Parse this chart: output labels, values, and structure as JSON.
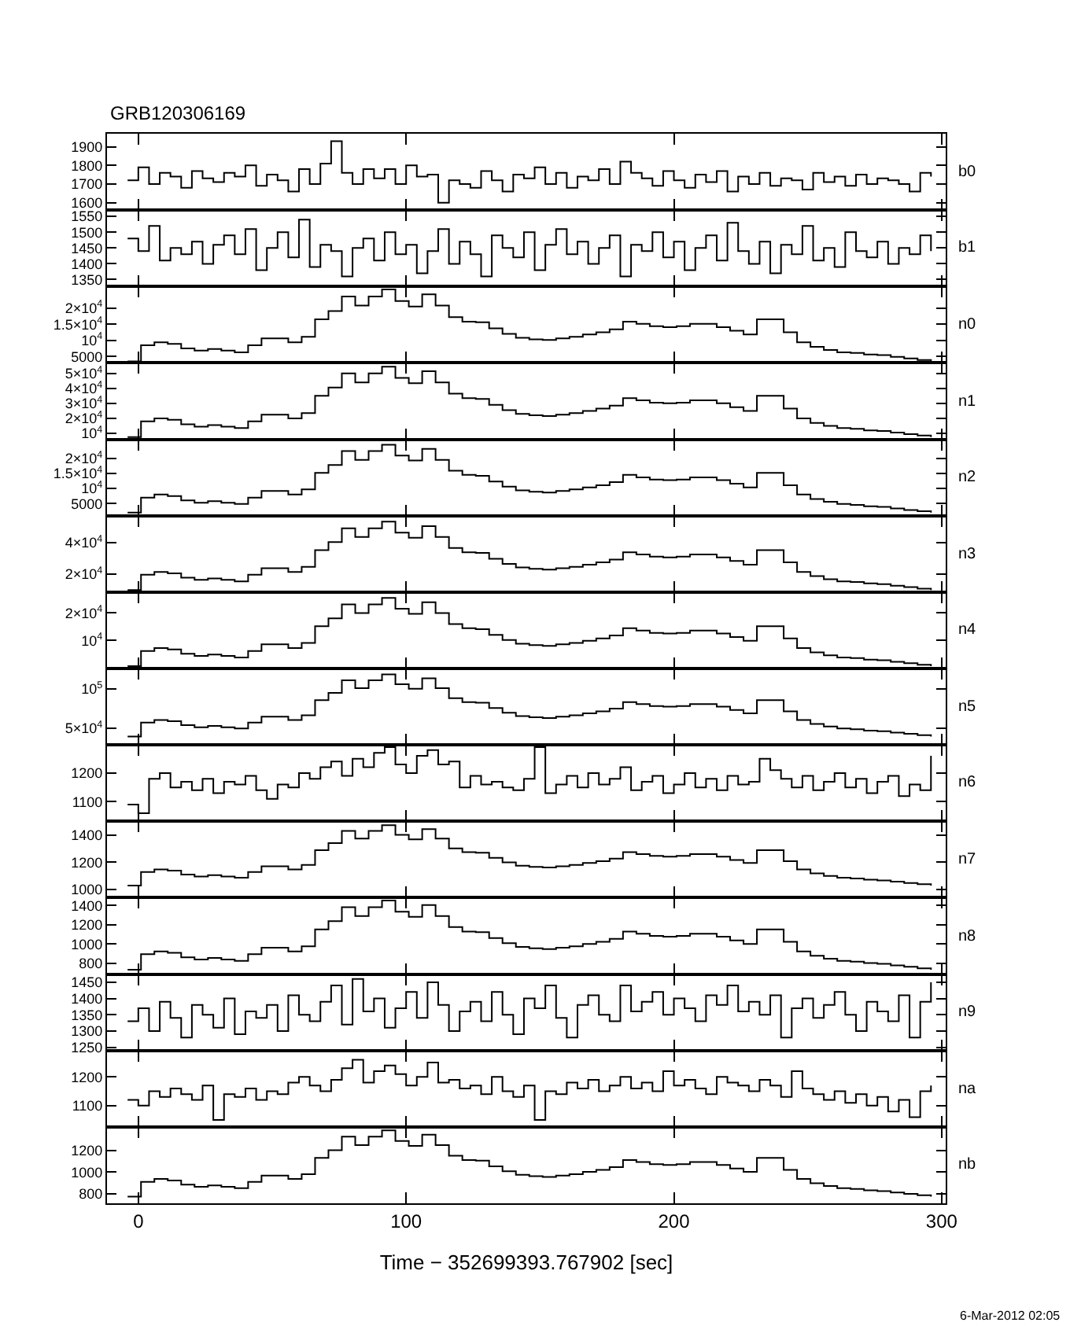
{
  "chart_data": [
    {
      "type": "step",
      "title": "GRB120306169",
      "x": [
        -4,
        0,
        4,
        8,
        12,
        16,
        20,
        24,
        28,
        32,
        36,
        40,
        44,
        48,
        52,
        56,
        60,
        64,
        68,
        72,
        76,
        80,
        84,
        88,
        92,
        96,
        100,
        104,
        108,
        112,
        116,
        120,
        124,
        128,
        132,
        136,
        140,
        144,
        148,
        152,
        156,
        160,
        164,
        168,
        172,
        176,
        180,
        184,
        188,
        192,
        196,
        200,
        204,
        208,
        212,
        216,
        220,
        224,
        228,
        232,
        236,
        240,
        244,
        248,
        252,
        256,
        260,
        264,
        268,
        272,
        276,
        280,
        284,
        288,
        292,
        296
      ],
      "xlim": [
        -11.7,
        301.5
      ],
      "xticks": [
        0,
        100,
        200,
        300
      ],
      "ylim": [
        1560,
        1970
      ],
      "yticks": [
        1600,
        1700,
        1800,
        1900
      ],
      "tick_labels": "y",
      "series": [
        {
          "name": "b0",
          "color": "#000000",
          "values": [
            1720,
            1790,
            1700,
            1760,
            1740,
            1680,
            1770,
            1730,
            1710,
            1760,
            1740,
            1800,
            1690,
            1750,
            1720,
            1660,
            1780,
            1700,
            1810,
            1930,
            1760,
            1700,
            1780,
            1730,
            1780,
            1700,
            1800,
            1740,
            1750,
            1600,
            1720,
            1700,
            1680,
            1770,
            1720,
            1660,
            1750,
            1730,
            1790,
            1700,
            1760,
            1680,
            1740,
            1720,
            1780,
            1700,
            1820,
            1760,
            1730,
            1690,
            1770,
            1720,
            1680,
            1750,
            1710,
            1770,
            1660,
            1740,
            1700,
            1760,
            1690,
            1730,
            1720,
            1670,
            1760,
            1710,
            1740,
            1690,
            1750,
            1700,
            1730,
            1720,
            1700,
            1660,
            1760,
            1740
          ]
        }
      ]
    },
    {
      "type": "step",
      "x": [
        -4,
        0,
        4,
        8,
        12,
        16,
        20,
        24,
        28,
        32,
        36,
        40,
        44,
        48,
        52,
        56,
        60,
        64,
        68,
        72,
        76,
        80,
        84,
        88,
        92,
        96,
        100,
        104,
        108,
        112,
        116,
        120,
        124,
        128,
        132,
        136,
        140,
        144,
        148,
        152,
        156,
        160,
        164,
        168,
        172,
        176,
        180,
        184,
        188,
        192,
        196,
        200,
        204,
        208,
        212,
        216,
        220,
        224,
        228,
        232,
        236,
        240,
        244,
        248,
        252,
        256,
        260,
        264,
        268,
        272,
        276,
        280,
        284,
        288,
        292,
        296
      ],
      "xlim": [
        -11.7,
        301.5
      ],
      "xticks": [
        0,
        100,
        200,
        300
      ],
      "ylim": [
        1328,
        1570
      ],
      "yticks": [
        1350,
        1400,
        1450,
        1500,
        1550
      ],
      "tick_labels": "y",
      "series": [
        {
          "name": "b1",
          "color": "#000000",
          "values": [
            1480,
            1440,
            1520,
            1410,
            1450,
            1430,
            1470,
            1400,
            1460,
            1490,
            1430,
            1510,
            1380,
            1450,
            1500,
            1420,
            1540,
            1390,
            1460,
            1440,
            1360,
            1450,
            1480,
            1410,
            1500,
            1430,
            1460,
            1370,
            1440,
            1510,
            1400,
            1470,
            1430,
            1360,
            1490,
            1450,
            1420,
            1500,
            1380,
            1460,
            1510,
            1430,
            1470,
            1400,
            1450,
            1490,
            1360,
            1460,
            1440,
            1500,
            1420,
            1470,
            1380,
            1450,
            1490,
            1410,
            1530,
            1440,
            1400,
            1470,
            1370,
            1460,
            1430,
            1520,
            1410,
            1450,
            1390,
            1500,
            1440,
            1420,
            1470,
            1400,
            1450,
            1430,
            1490,
            1440
          ]
        }
      ]
    },
    {
      "type": "step",
      "x": [
        -4,
        1,
        6,
        11,
        16,
        21,
        26,
        31,
        36,
        41,
        46,
        51,
        56,
        61,
        66,
        71,
        76,
        81,
        86,
        91,
        96,
        101,
        106,
        111,
        116,
        121,
        126,
        131,
        136,
        141,
        146,
        151,
        156,
        161,
        166,
        171,
        176,
        181,
        186,
        191,
        196,
        201,
        206,
        211,
        216,
        221,
        226,
        231,
        236,
        241,
        246,
        251,
        256,
        261,
        266,
        271,
        276,
        281,
        286,
        291,
        296
      ],
      "xlim": [
        -11.7,
        301.5
      ],
      "xticks": [
        0,
        100,
        200,
        300
      ],
      "ylim": [
        3000,
        26700
      ],
      "yticks": [
        5000,
        {
          "value": 10000,
          "label": "10$^{4}$"
        },
        {
          "value": 15000,
          "label": "1.5×10$^{4}$"
        },
        {
          "value": 20000,
          "label": "2×10$^{4}$"
        }
      ],
      "tick_labels": "y",
      "series": [
        {
          "name": "n0",
          "color": "#000000",
          "values": [
            3500,
            8500,
            9400,
            8900,
            7500,
            6800,
            7300,
            6800,
            6300,
            8500,
            10600,
            10600,
            9400,
            11100,
            16500,
            19100,
            23600,
            20800,
            23600,
            25800,
            22200,
            20500,
            24300,
            20800,
            17200,
            15800,
            15600,
            13700,
            12000,
            10800,
            10300,
            10100,
            10600,
            11100,
            11800,
            12500,
            13400,
            15800,
            15100,
            14400,
            14100,
            14400,
            15100,
            15100,
            14100,
            13000,
            11800,
            16500,
            16500,
            12500,
            9400,
            8000,
            7000,
            6300,
            6100,
            5600,
            5400,
            4900,
            4400,
            3900,
            3500
          ]
        }
      ]
    },
    {
      "type": "step",
      "x": [
        -4,
        1,
        6,
        11,
        16,
        21,
        26,
        31,
        36,
        41,
        46,
        51,
        56,
        61,
        66,
        71,
        76,
        81,
        86,
        91,
        96,
        101,
        106,
        111,
        116,
        121,
        126,
        131,
        136,
        141,
        146,
        151,
        156,
        161,
        166,
        171,
        176,
        181,
        186,
        191,
        196,
        201,
        206,
        211,
        216,
        221,
        226,
        231,
        236,
        241,
        246,
        251,
        256,
        261,
        266,
        271,
        276,
        281,
        286,
        291,
        296
      ],
      "xlim": [
        -11.7,
        301.5
      ],
      "xticks": [
        0,
        100,
        200,
        300
      ],
      "ylim": [
        6000,
        57000
      ],
      "yticks": [
        {
          "value": 10000,
          "label": "10$^{4}$"
        },
        {
          "value": 20000,
          "label": "2×10$^{4}$"
        },
        {
          "value": 30000,
          "label": "3×10$^{4}$"
        },
        {
          "value": 40000,
          "label": "4×10$^{4}$"
        },
        {
          "value": 50000,
          "label": "5×10$^{4}$"
        }
      ],
      "tick_labels": "y",
      "series": [
        {
          "name": "n1",
          "color": "#000000",
          "values": [
            7500,
            18000,
            20000,
            19000,
            16000,
            14500,
            15500,
            14500,
            13500,
            18000,
            22500,
            22500,
            20000,
            23500,
            35000,
            40500,
            50000,
            44000,
            50000,
            54500,
            47000,
            43500,
            51500,
            44000,
            36500,
            33500,
            33000,
            29000,
            25500,
            23000,
            22000,
            21500,
            22500,
            23500,
            25000,
            26500,
            28500,
            33500,
            32000,
            30500,
            30000,
            30500,
            32000,
            32000,
            30000,
            27500,
            25000,
            35000,
            35000,
            26500,
            20000,
            17000,
            15000,
            13500,
            13000,
            12000,
            11500,
            10500,
            9500,
            8500,
            7500
          ]
        }
      ]
    },
    {
      "type": "step",
      "x": [
        -4,
        1,
        6,
        11,
        16,
        21,
        26,
        31,
        36,
        41,
        46,
        51,
        56,
        61,
        66,
        71,
        76,
        81,
        86,
        91,
        96,
        101,
        106,
        111,
        116,
        121,
        126,
        131,
        136,
        141,
        146,
        151,
        156,
        161,
        166,
        171,
        176,
        181,
        186,
        191,
        196,
        201,
        206,
        211,
        216,
        221,
        226,
        231,
        236,
        241,
        246,
        251,
        256,
        261,
        266,
        271,
        276,
        281,
        286,
        291,
        296
      ],
      "xlim": [
        -11.7,
        301.5
      ],
      "xticks": [
        0,
        100,
        200,
        300
      ],
      "ylim": [
        1000,
        26300
      ],
      "yticks": [
        5000,
        {
          "value": 10000,
          "label": "10$^{4}$"
        },
        {
          "value": 15000,
          "label": "1.5×10$^{4}$"
        },
        {
          "value": 20000,
          "label": "2×10$^{4}$"
        }
      ],
      "tick_labels": "y",
      "series": [
        {
          "name": "n2",
          "color": "#000000",
          "values": [
            2000,
            7000,
            8000,
            7500,
            6100,
            5300,
            5800,
            5300,
            4900,
            7000,
            9200,
            9200,
            8000,
            9700,
            15200,
            17800,
            22400,
            19500,
            22400,
            24500,
            20900,
            19300,
            23100,
            19500,
            15900,
            14500,
            14200,
            12300,
            10600,
            9400,
            8900,
            8700,
            9200,
            9700,
            10400,
            11100,
            12100,
            14500,
            13700,
            13000,
            12800,
            13000,
            13700,
            13700,
            12800,
            11600,
            10400,
            15200,
            15200,
            11100,
            8000,
            6500,
            5600,
            4900,
            4600,
            4100,
            3900,
            3400,
            2900,
            2500,
            2000
          ]
        }
      ]
    },
    {
      "type": "step",
      "x": [
        -4,
        1,
        6,
        11,
        16,
        21,
        26,
        31,
        36,
        41,
        46,
        51,
        56,
        61,
        66,
        71,
        76,
        81,
        86,
        91,
        96,
        101,
        106,
        111,
        116,
        121,
        126,
        131,
        136,
        141,
        146,
        151,
        156,
        161,
        166,
        171,
        176,
        181,
        186,
        191,
        196,
        201,
        206,
        211,
        216,
        221,
        226,
        231,
        236,
        241,
        246,
        251,
        256,
        261,
        266,
        271,
        276,
        281,
        286,
        291,
        296
      ],
      "xlim": [
        -11.7,
        301.5
      ],
      "xticks": [
        0,
        100,
        200,
        300
      ],
      "ylim": [
        8600,
        57000
      ],
      "yticks": [
        {
          "value": 20000,
          "label": "2×10$^{4}$"
        },
        {
          "value": 40000,
          "label": "4×10$^{4}$"
        }
      ],
      "tick_labels": "y",
      "series": [
        {
          "name": "n3",
          "color": "#000000",
          "values": [
            9900,
            19600,
            21400,
            20500,
            17700,
            16400,
            17300,
            16400,
            15400,
            19600,
            23700,
            23700,
            21400,
            24600,
            35200,
            40300,
            49000,
            43500,
            49000,
            53200,
            46300,
            43000,
            50400,
            43500,
            36600,
            33800,
            33400,
            29700,
            26500,
            24200,
            23300,
            22800,
            23700,
            24600,
            26000,
            27400,
            29200,
            33800,
            32500,
            31100,
            30600,
            31100,
            32500,
            32500,
            30600,
            28300,
            26000,
            35200,
            35200,
            27400,
            21400,
            18700,
            16800,
            15400,
            15000,
            14100,
            13600,
            12700,
            11800,
            10800,
            9900
          ]
        }
      ]
    },
    {
      "type": "step",
      "log": true,
      "x": [
        -4,
        1,
        6,
        11,
        16,
        21,
        26,
        31,
        36,
        41,
        46,
        51,
        56,
        61,
        66,
        71,
        76,
        81,
        86,
        91,
        96,
        101,
        106,
        111,
        116,
        121,
        126,
        131,
        136,
        141,
        146,
        151,
        156,
        161,
        166,
        171,
        176,
        181,
        186,
        191,
        196,
        201,
        206,
        211,
        216,
        221,
        226,
        231,
        236,
        241,
        246,
        251,
        256,
        261,
        266,
        271,
        276,
        281,
        286,
        291,
        296
      ],
      "xlim": [
        -11.7,
        301.5
      ],
      "xticks": [
        0,
        100,
        200,
        300
      ],
      "ylim": [
        4900,
        34000
      ],
      "yticks": [
        {
          "value": 10000,
          "label": "10$^{4}$"
        },
        {
          "value": 20000,
          "label": "2×10$^{4}$"
        }
      ],
      "tick_labels": "y",
      "series": [
        {
          "name": "n4",
          "color": "#000000",
          "values": [
            5200,
            7650,
            8240,
            7940,
            7110,
            6730,
            6980,
            6730,
            6490,
            7650,
            9040,
            9040,
            8240,
            9380,
            14300,
            17500,
            24900,
            20000,
            24900,
            29400,
            22300,
            19600,
            26300,
            20000,
            15100,
            13600,
            13300,
            11500,
            10100,
            9200,
            8870,
            8710,
            9040,
            9380,
            9910,
            10500,
            11300,
            13600,
            12800,
            12100,
            11900,
            12100,
            12800,
            12800,
            11900,
            10900,
            9910,
            14300,
            14300,
            10500,
            8240,
            7380,
            6850,
            6490,
            6370,
            6140,
            6030,
            5810,
            5600,
            5400,
            5200
          ]
        }
      ]
    },
    {
      "type": "step",
      "x": [
        -4,
        1,
        6,
        11,
        16,
        21,
        26,
        31,
        36,
        41,
        46,
        51,
        56,
        61,
        66,
        71,
        76,
        81,
        86,
        91,
        96,
        101,
        106,
        111,
        116,
        121,
        126,
        131,
        136,
        141,
        146,
        151,
        156,
        161,
        166,
        171,
        176,
        181,
        186,
        191,
        196,
        201,
        206,
        211,
        216,
        221,
        226,
        231,
        236,
        241,
        246,
        251,
        256,
        261,
        266,
        271,
        276,
        281,
        286,
        291,
        296
      ],
      "xlim": [
        -11.7,
        301.5
      ],
      "xticks": [
        0,
        100,
        200,
        300
      ],
      "ylim": [
        29000,
        126000
      ],
      "yticks": [
        {
          "value": 50000,
          "label": "5×10$^{4}$"
        },
        {
          "value": 100000,
          "label": "10$^{5}$"
        }
      ],
      "tick_labels": "y",
      "series": [
        {
          "name": "n5",
          "color": "#000000",
          "values": [
            39700,
            57300,
            60700,
            59000,
            54000,
            51400,
            53100,
            51400,
            49800,
            57300,
            64900,
            64900,
            60700,
            66600,
            85900,
            95100,
            111100,
            101000,
            111100,
            118600,
            106000,
            100200,
            113600,
            101000,
            88400,
            83400,
            82500,
            75800,
            69900,
            65700,
            64000,
            63200,
            64900,
            66600,
            69100,
            71600,
            75000,
            83400,
            80800,
            78300,
            77500,
            78300,
            80800,
            80800,
            77500,
            73300,
            69100,
            85900,
            85900,
            71600,
            60700,
            55600,
            52300,
            49800,
            48900,
            47200,
            46400,
            44700,
            43000,
            41400,
            39700
          ]
        }
      ]
    },
    {
      "type": "step",
      "x": [
        -4,
        0,
        4,
        8,
        12,
        16,
        20,
        24,
        28,
        32,
        36,
        40,
        44,
        48,
        52,
        56,
        60,
        64,
        68,
        72,
        76,
        80,
        84,
        88,
        92,
        96,
        100,
        104,
        108,
        112,
        116,
        120,
        124,
        128,
        132,
        136,
        140,
        144,
        148,
        152,
        156,
        160,
        164,
        168,
        172,
        176,
        180,
        184,
        188,
        192,
        196,
        200,
        204,
        208,
        212,
        216,
        220,
        224,
        228,
        232,
        236,
        240,
        244,
        248,
        252,
        256,
        260,
        264,
        268,
        272,
        276,
        280,
        284,
        288,
        292,
        296
      ],
      "xlim": [
        -11.7,
        301.5
      ],
      "xticks": [
        0,
        100,
        200,
        300
      ],
      "ylim": [
        1032,
        1298
      ],
      "yticks": [
        1100,
        1200
      ],
      "tick_labels": "y",
      "series": [
        {
          "name": "n6",
          "color": "#000000",
          "values": [
            1090,
            1060,
            1180,
            1200,
            1150,
            1170,
            1140,
            1180,
            1130,
            1170,
            1160,
            1190,
            1140,
            1110,
            1160,
            1150,
            1200,
            1180,
            1220,
            1240,
            1190,
            1250,
            1220,
            1270,
            1290,
            1230,
            1200,
            1260,
            1280,
            1230,
            1240,
            1150,
            1190,
            1160,
            1170,
            1150,
            1140,
            1180,
            1290,
            1130,
            1160,
            1190,
            1150,
            1200,
            1160,
            1180,
            1220,
            1140,
            1170,
            1190,
            1130,
            1160,
            1200,
            1150,
            1180,
            1140,
            1190,
            1160,
            1170,
            1250,
            1210,
            1180,
            1150,
            1190,
            1140,
            1170,
            1200,
            1150,
            1180,
            1130,
            1170,
            1190,
            1120,
            1160,
            1140,
            1260
          ]
        }
      ]
    },
    {
      "type": "step",
      "x": [
        -4,
        1,
        6,
        11,
        16,
        21,
        26,
        31,
        36,
        41,
        46,
        51,
        56,
        61,
        66,
        71,
        76,
        81,
        86,
        91,
        96,
        101,
        106,
        111,
        116,
        121,
        126,
        131,
        136,
        141,
        146,
        151,
        156,
        161,
        166,
        171,
        176,
        181,
        186,
        191,
        196,
        201,
        206,
        211,
        216,
        221,
        226,
        231,
        236,
        241,
        246,
        251,
        256,
        261,
        266,
        271,
        276,
        281,
        286,
        291,
        296
      ],
      "xlim": [
        -11.7,
        301.5
      ],
      "xticks": [
        0,
        100,
        200,
        300
      ],
      "ylim": [
        940,
        1500
      ],
      "yticks": [
        1000,
        1200,
        1400
      ],
      "tick_labels": "y",
      "series": [
        {
          "name": "n7",
          "color": "#000000",
          "values": [
            1029,
            1128,
            1147,
            1138,
            1109,
            1095,
            1105,
            1095,
            1086,
            1128,
            1170,
            1170,
            1147,
            1180,
            1288,
            1340,
            1429,
            1373,
            1429,
            1471,
            1401,
            1368,
            1443,
            1373,
            1302,
            1274,
            1269,
            1232,
            1199,
            1175,
            1166,
            1161,
            1170,
            1180,
            1194,
            1208,
            1227,
            1274,
            1260,
            1246,
            1241,
            1246,
            1260,
            1260,
            1241,
            1217,
            1194,
            1288,
            1288,
            1208,
            1147,
            1119,
            1100,
            1086,
            1081,
            1072,
            1067,
            1058,
            1048,
            1039,
            1029
          ]
        }
      ]
    },
    {
      "type": "step",
      "x": [
        -4,
        1,
        6,
        11,
        16,
        21,
        26,
        31,
        36,
        41,
        46,
        51,
        56,
        61,
        66,
        71,
        76,
        81,
        86,
        91,
        96,
        101,
        106,
        111,
        116,
        121,
        126,
        131,
        136,
        141,
        146,
        151,
        156,
        161,
        166,
        171,
        176,
        181,
        186,
        191,
        196,
        201,
        206,
        211,
        216,
        221,
        226,
        231,
        236,
        241,
        246,
        251,
        256,
        261,
        266,
        271,
        276,
        281,
        286,
        291,
        296
      ],
      "xlim": [
        -11.7,
        301.5
      ],
      "xticks": [
        0,
        100,
        200,
        300
      ],
      "ylim": [
        690,
        1480
      ],
      "yticks": [
        800,
        1000,
        1200,
        1400
      ],
      "tick_labels": "y",
      "series": [
        {
          "name": "n8",
          "color": "#000000",
          "values": [
            735,
            895,
            925,
            910,
            864,
            842,
            857,
            842,
            826,
            895,
            963,
            963,
            925,
            978,
            1153,
            1237,
            1381,
            1290,
            1381,
            1450,
            1336,
            1282,
            1404,
            1290,
            1176,
            1130,
            1123,
            1062,
            1009,
            971,
            956,
            948,
            963,
            978,
            1001,
            1024,
            1054,
            1130,
            1108,
            1085,
            1077,
            1085,
            1108,
            1108,
            1077,
            1039,
            1001,
            1153,
            1153,
            1024,
            925,
            880,
            849,
            826,
            819,
            804,
            796,
            781,
            766,
            750,
            735
          ]
        }
      ]
    },
    {
      "type": "step",
      "x": [
        -4,
        0,
        4,
        8,
        12,
        16,
        20,
        24,
        28,
        32,
        36,
        40,
        44,
        48,
        52,
        56,
        60,
        64,
        68,
        72,
        76,
        80,
        84,
        88,
        92,
        96,
        100,
        104,
        108,
        112,
        116,
        120,
        124,
        128,
        132,
        136,
        140,
        144,
        148,
        152,
        156,
        160,
        164,
        168,
        172,
        176,
        180,
        184,
        188,
        192,
        196,
        200,
        204,
        208,
        212,
        216,
        220,
        224,
        228,
        232,
        236,
        240,
        244,
        248,
        252,
        256,
        260,
        264,
        268,
        272,
        276,
        280,
        284,
        288,
        292,
        296
      ],
      "xlim": [
        -11.7,
        301.5
      ],
      "xticks": [
        0,
        100,
        200,
        300
      ],
      "ylim": [
        1240,
        1475
      ],
      "yticks": [
        1250,
        1300,
        1350,
        1400,
        1450
      ],
      "tick_labels": "y",
      "series": [
        {
          "name": "n9",
          "color": "#000000",
          "values": [
            1330,
            1370,
            1300,
            1390,
            1340,
            1280,
            1380,
            1350,
            1310,
            1400,
            1290,
            1360,
            1340,
            1380,
            1300,
            1410,
            1350,
            1330,
            1390,
            1440,
            1320,
            1460,
            1360,
            1400,
            1310,
            1370,
            1420,
            1340,
            1450,
            1380,
            1300,
            1360,
            1390,
            1330,
            1420,
            1350,
            1290,
            1400,
            1370,
            1440,
            1340,
            1280,
            1380,
            1410,
            1350,
            1330,
            1440,
            1360,
            1390,
            1420,
            1350,
            1400,
            1370,
            1330,
            1410,
            1380,
            1440,
            1360,
            1390,
            1350,
            1410,
            1280,
            1370,
            1400,
            1340,
            1380,
            1420,
            1350,
            1300,
            1390,
            1360,
            1330,
            1410,
            1280,
            1390,
            1450
          ]
        }
      ]
    },
    {
      "type": "step",
      "x": [
        -4,
        0,
        4,
        8,
        12,
        16,
        20,
        24,
        28,
        32,
        36,
        40,
        44,
        48,
        52,
        56,
        60,
        64,
        68,
        72,
        76,
        80,
        84,
        88,
        92,
        96,
        100,
        104,
        108,
        112,
        116,
        120,
        124,
        128,
        132,
        136,
        140,
        144,
        148,
        152,
        156,
        160,
        164,
        168,
        172,
        176,
        180,
        184,
        188,
        192,
        196,
        200,
        204,
        208,
        212,
        216,
        220,
        224,
        228,
        232,
        236,
        240,
        244,
        248,
        252,
        256,
        260,
        264,
        268,
        272,
        276,
        280,
        284,
        288,
        292,
        296
      ],
      "xlim": [
        -11.7,
        301.5
      ],
      "xticks": [
        0,
        100,
        200,
        300
      ],
      "ylim": [
        1026,
        1292
      ],
      "yticks": [
        1100,
        1200
      ],
      "tick_labels": "y",
      "series": [
        {
          "name": "na",
          "color": "#000000",
          "values": [
            1120,
            1100,
            1150,
            1130,
            1160,
            1140,
            1120,
            1170,
            1050,
            1140,
            1130,
            1160,
            1120,
            1150,
            1140,
            1180,
            1200,
            1170,
            1150,
            1190,
            1230,
            1260,
            1180,
            1220,
            1240,
            1210,
            1170,
            1200,
            1250,
            1180,
            1190,
            1160,
            1170,
            1140,
            1200,
            1150,
            1130,
            1170,
            1050,
            1150,
            1140,
            1180,
            1160,
            1190,
            1150,
            1170,
            1200,
            1160,
            1180,
            1150,
            1220,
            1170,
            1190,
            1160,
            1140,
            1200,
            1180,
            1170,
            1150,
            1190,
            1170,
            1130,
            1220,
            1160,
            1140,
            1120,
            1150,
            1110,
            1140,
            1100,
            1130,
            1080,
            1120,
            1060,
            1150,
            1170
          ]
        }
      ]
    },
    {
      "type": "step",
      "xlabel": "Time − 352699393.767902 [sec]",
      "annotations": [
        "6-Mar-2012 02:05"
      ],
      "x": [
        -4,
        1,
        6,
        11,
        16,
        21,
        26,
        31,
        36,
        41,
        46,
        51,
        56,
        61,
        66,
        71,
        76,
        81,
        86,
        91,
        96,
        101,
        106,
        111,
        116,
        121,
        126,
        131,
        136,
        141,
        146,
        151,
        156,
        161,
        166,
        171,
        176,
        181,
        186,
        191,
        196,
        201,
        206,
        211,
        216,
        221,
        226,
        231,
        236,
        241,
        246,
        251,
        256,
        261,
        266,
        271,
        276,
        281,
        286,
        291,
        296
      ],
      "xlim": [
        -11.7,
        301.5
      ],
      "xticks": [
        0,
        100,
        200,
        300
      ],
      "ylim": [
        712,
        1416
      ],
      "yticks": [
        800,
        1000,
        1200
      ],
      "series": [
        {
          "name": "nb",
          "color": "#000000",
          "values": [
            773,
            910,
            936,
            923,
            884,
            864,
            877,
            864,
            851,
            910,
            968,
            968,
            936,
            981,
            1131,
            1202,
            1326,
            1248,
            1326,
            1384,
            1287,
            1241,
            1345,
            1248,
            1150,
            1111,
            1105,
            1053,
            1007,
            975,
            962,
            955,
            968,
            981,
            1001,
            1020,
            1046,
            1111,
            1092,
            1072,
            1066,
            1072,
            1092,
            1092,
            1066,
            1033,
            1001,
            1131,
            1131,
            1020,
            936,
            897,
            871,
            851,
            845,
            832,
            825,
            812,
            799,
            786,
            773
          ]
        }
      ]
    }
  ]
}
